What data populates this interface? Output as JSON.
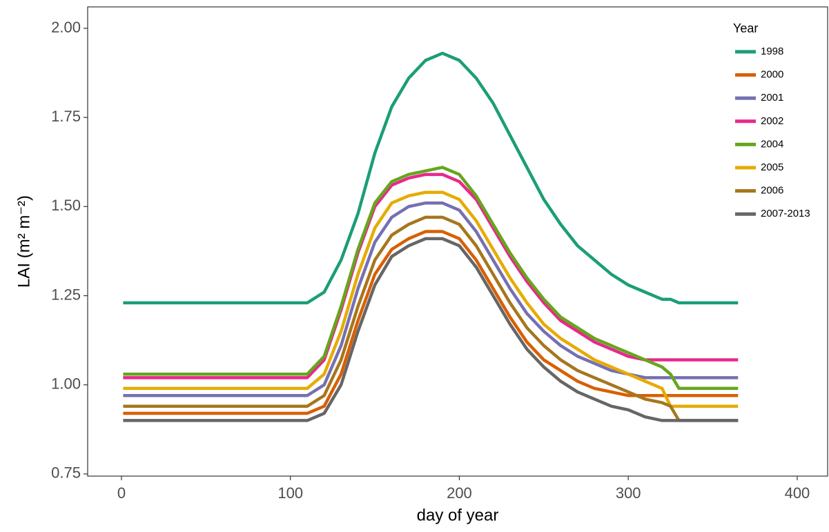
{
  "chart_data": {
    "type": "line",
    "x_label": "day of year",
    "y_label": "LAI (m² m⁻²)",
    "legend_title": "Year",
    "legend_position": "top-right",
    "xlim": [
      -20,
      418
    ],
    "ylim": [
      0.744,
      2.06
    ],
    "xticks": [
      0,
      100,
      200,
      300,
      400
    ],
    "yticks": [
      {
        "value": 0.75,
        "label": "0.75"
      },
      {
        "value": 1,
        "label": "1.00"
      },
      {
        "value": 1.25,
        "label": "1.25"
      },
      {
        "value": 1.5,
        "label": "1.50"
      },
      {
        "value": 1.75,
        "label": "1.75"
      },
      {
        "value": 2,
        "label": "2.00"
      }
    ],
    "x": [
      1,
      110,
      120,
      130,
      140,
      150,
      160,
      170,
      180,
      190,
      200,
      210,
      220,
      230,
      240,
      250,
      260,
      270,
      280,
      290,
      300,
      310,
      320,
      325,
      330,
      340,
      365
    ],
    "series": [
      {
        "name": "1998",
        "color": "#1b9e77",
        "values": [
          1.23,
          1.23,
          1.26,
          1.35,
          1.48,
          1.65,
          1.78,
          1.86,
          1.91,
          1.93,
          1.91,
          1.86,
          1.79,
          1.7,
          1.61,
          1.52,
          1.45,
          1.39,
          1.35,
          1.31,
          1.28,
          1.26,
          1.24,
          1.24,
          1.23,
          1.23,
          1.23
        ]
      },
      {
        "name": "2000",
        "color": "#d95f02",
        "values": [
          0.92,
          0.92,
          0.94,
          1.03,
          1.18,
          1.31,
          1.38,
          1.41,
          1.43,
          1.43,
          1.41,
          1.35,
          1.27,
          1.19,
          1.12,
          1.07,
          1.04,
          1.01,
          0.99,
          0.98,
          0.97,
          0.97,
          0.97,
          0.97,
          0.97,
          0.97,
          0.97
        ]
      },
      {
        "name": "2001",
        "color": "#7570b3",
        "values": [
          0.97,
          0.97,
          1.0,
          1.11,
          1.27,
          1.4,
          1.47,
          1.5,
          1.51,
          1.51,
          1.49,
          1.43,
          1.35,
          1.27,
          1.2,
          1.15,
          1.11,
          1.08,
          1.06,
          1.04,
          1.03,
          1.02,
          1.02,
          1.02,
          1.02,
          1.02,
          1.02
        ]
      },
      {
        "name": "2002",
        "color": "#e7298a",
        "values": [
          1.02,
          1.02,
          1.07,
          1.21,
          1.37,
          1.5,
          1.56,
          1.58,
          1.59,
          1.59,
          1.57,
          1.52,
          1.44,
          1.36,
          1.29,
          1.23,
          1.18,
          1.15,
          1.12,
          1.1,
          1.08,
          1.07,
          1.07,
          1.07,
          1.07,
          1.07,
          1.07
        ]
      },
      {
        "name": "2004",
        "color": "#66a61e",
        "values": [
          1.03,
          1.03,
          1.08,
          1.22,
          1.38,
          1.51,
          1.57,
          1.59,
          1.6,
          1.61,
          1.59,
          1.53,
          1.45,
          1.37,
          1.3,
          1.24,
          1.19,
          1.16,
          1.13,
          1.11,
          1.09,
          1.07,
          1.05,
          1.03,
          0.99,
          0.99,
          0.99
        ]
      },
      {
        "name": "2005",
        "color": "#e6ab02",
        "values": [
          0.99,
          0.99,
          1.03,
          1.15,
          1.31,
          1.44,
          1.51,
          1.53,
          1.54,
          1.54,
          1.52,
          1.46,
          1.38,
          1.3,
          1.23,
          1.17,
          1.13,
          1.1,
          1.07,
          1.05,
          1.03,
          1.01,
          0.99,
          0.94,
          0.94,
          0.94,
          0.94
        ]
      },
      {
        "name": "2006",
        "color": "#a6761d",
        "values": [
          0.94,
          0.94,
          0.97,
          1.07,
          1.22,
          1.35,
          1.42,
          1.45,
          1.47,
          1.47,
          1.45,
          1.39,
          1.31,
          1.23,
          1.16,
          1.11,
          1.07,
          1.04,
          1.02,
          1.0,
          0.98,
          0.96,
          0.95,
          0.94,
          0.9,
          0.9,
          0.9
        ]
      },
      {
        "name": "2007-2013",
        "color": "#666666",
        "values": [
          0.9,
          0.9,
          0.92,
          1.0,
          1.15,
          1.28,
          1.36,
          1.39,
          1.41,
          1.41,
          1.39,
          1.33,
          1.25,
          1.17,
          1.1,
          1.05,
          1.01,
          0.98,
          0.96,
          0.94,
          0.93,
          0.91,
          0.9,
          0.9,
          0.9,
          0.9,
          0.9
        ]
      }
    ]
  }
}
